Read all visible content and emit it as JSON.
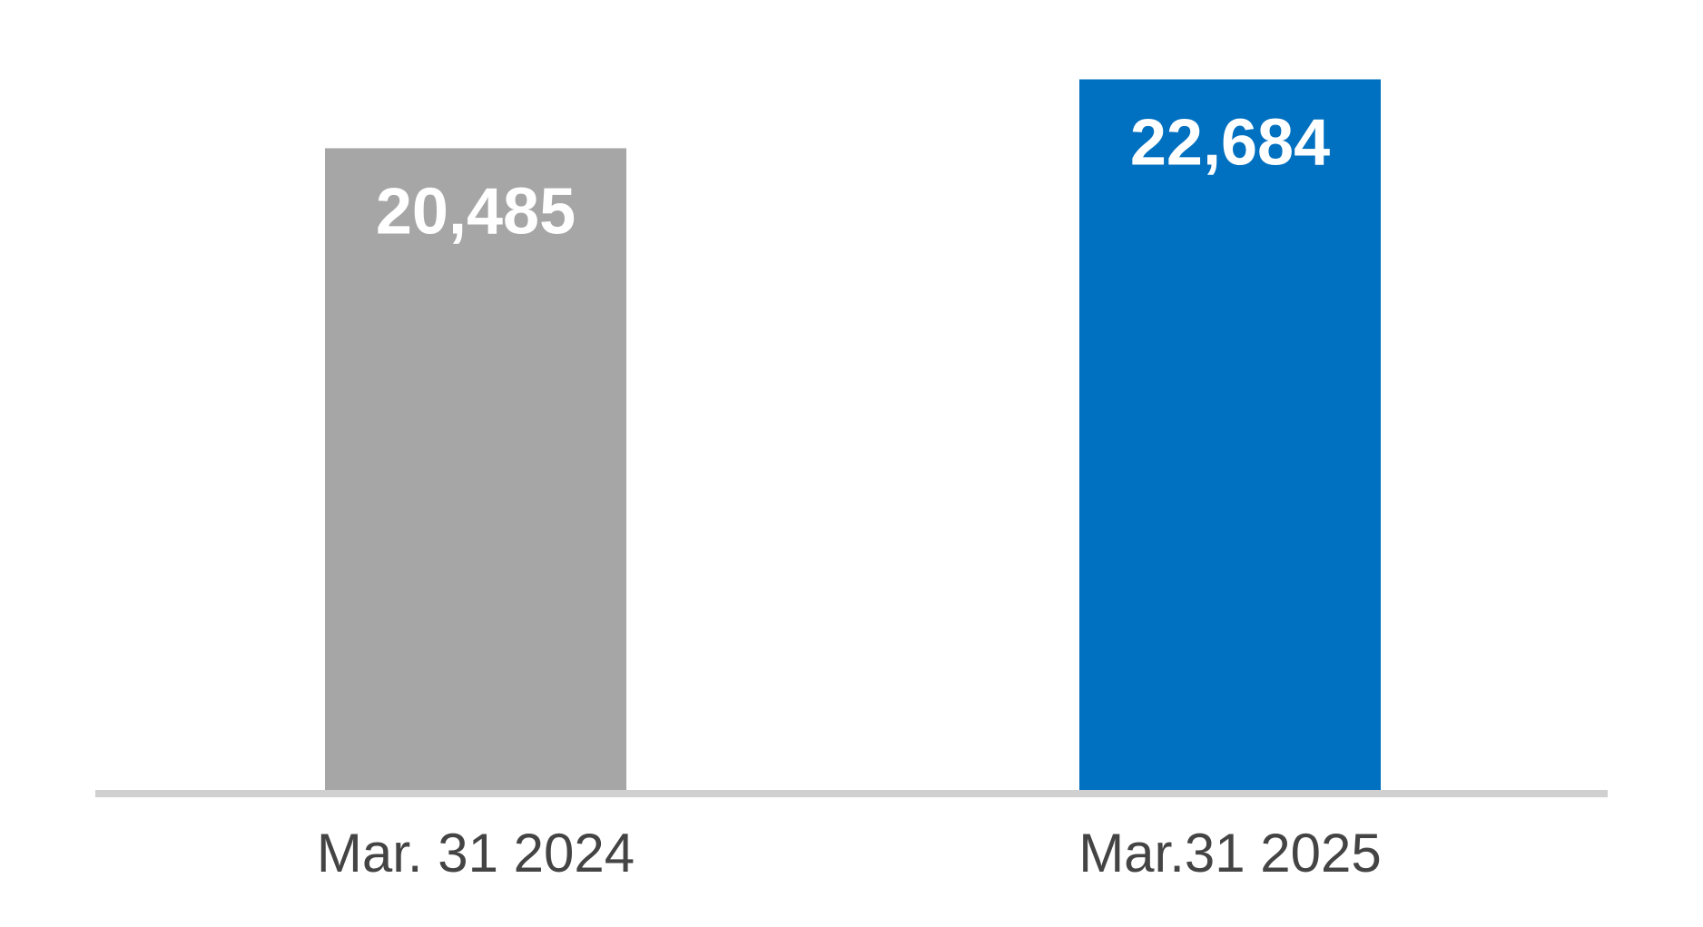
{
  "chart_data": {
    "type": "bar",
    "categories": [
      "Mar. 31 2024",
      "Mar.31 2025"
    ],
    "values": [
      20485,
      22684
    ],
    "value_labels": [
      "20,485",
      "22,684"
    ],
    "colors": [
      "#a6a6a6",
      "#0070c0"
    ]
  }
}
